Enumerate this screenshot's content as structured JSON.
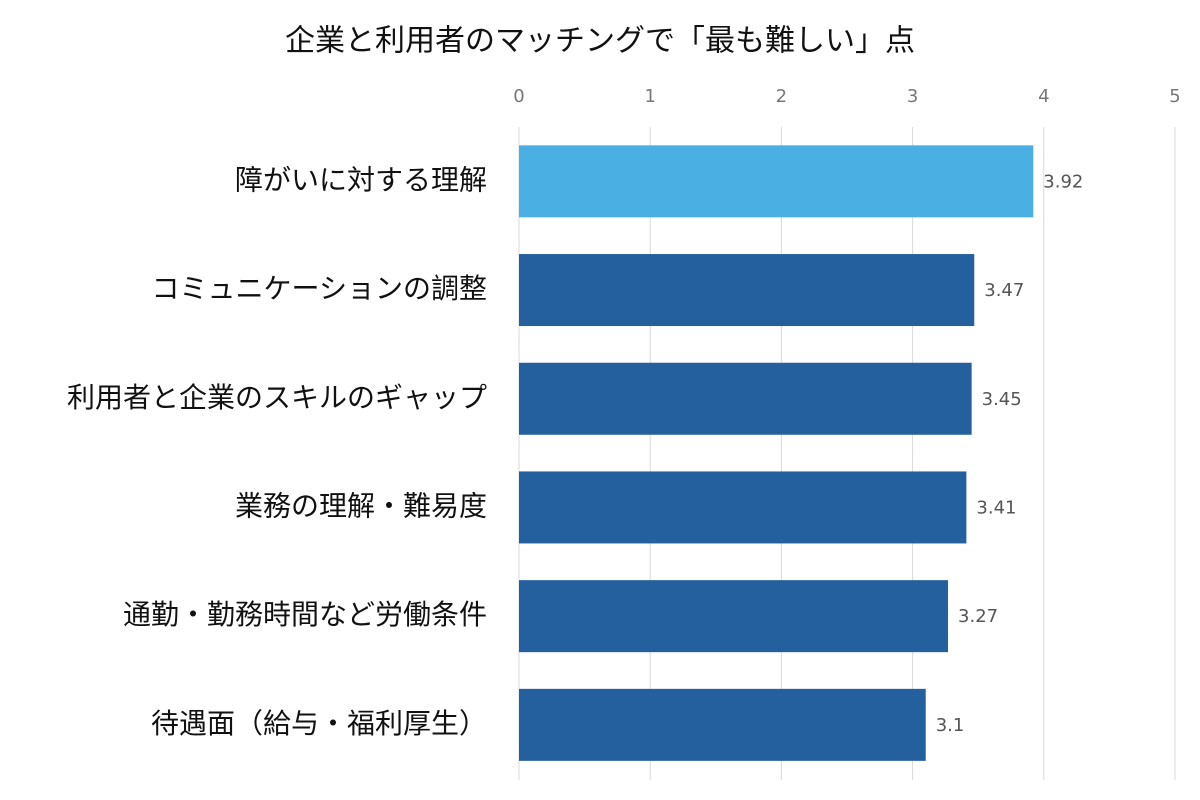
{
  "chart_data": {
    "type": "hbar",
    "title": "企業と利用者のマッチングで「最も難しい」点",
    "categories": [
      "障がいに対する理解",
      "コミュニケーションの調整",
      "利用者と企業のスキルのギャップ",
      "業務の理解・難易度",
      "通勤・勤務時間など労働条件",
      "待遇面（給与・福利厚生）"
    ],
    "values": [
      3.92,
      3.47,
      3.45,
      3.41,
      3.27,
      3.1
    ],
    "colors": [
      "#4aafe3",
      "#245f9e",
      "#245f9e",
      "#245f9e",
      "#245f9e",
      "#245f9e"
    ],
    "xlim": [
      0,
      5
    ],
    "xticks": [
      0,
      1,
      2,
      3,
      4,
      5
    ],
    "grid": true
  }
}
